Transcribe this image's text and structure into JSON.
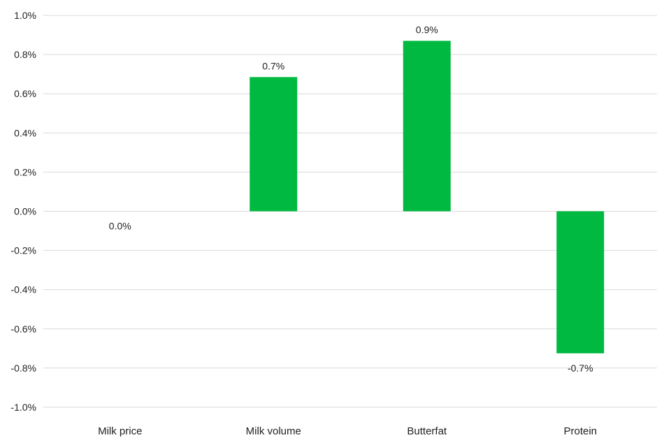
{
  "chart_data": {
    "type": "bar",
    "categories": [
      "Milk price",
      "Milk volume",
      "Butterfat",
      "Protein"
    ],
    "values": [
      0.0,
      0.685,
      0.87,
      -0.725
    ],
    "data_labels": [
      "0.0%",
      "0.7%",
      "0.9%",
      "-0.7%"
    ],
    "title": "",
    "xlabel": "",
    "ylabel": "",
    "ylim": [
      -1.0,
      1.0
    ],
    "y_ticks": [
      {
        "value": 1.0,
        "label": "1.0%"
      },
      {
        "value": 0.8,
        "label": "0.8%"
      },
      {
        "value": 0.6,
        "label": "0.6%"
      },
      {
        "value": 0.4,
        "label": "0.4%"
      },
      {
        "value": 0.2,
        "label": "0.2%"
      },
      {
        "value": 0.0,
        "label": "0.0%"
      },
      {
        "value": -0.2,
        "label": "-0.2%"
      },
      {
        "value": -0.4,
        "label": "-0.4%"
      },
      {
        "value": -0.6,
        "label": "-0.6%"
      },
      {
        "value": -0.8,
        "label": "-0.8%"
      },
      {
        "value": -1.0,
        "label": "-1.0%"
      }
    ],
    "grid": true,
    "bar_color": "#00b940",
    "gridline_color": "#d9d9d9"
  }
}
